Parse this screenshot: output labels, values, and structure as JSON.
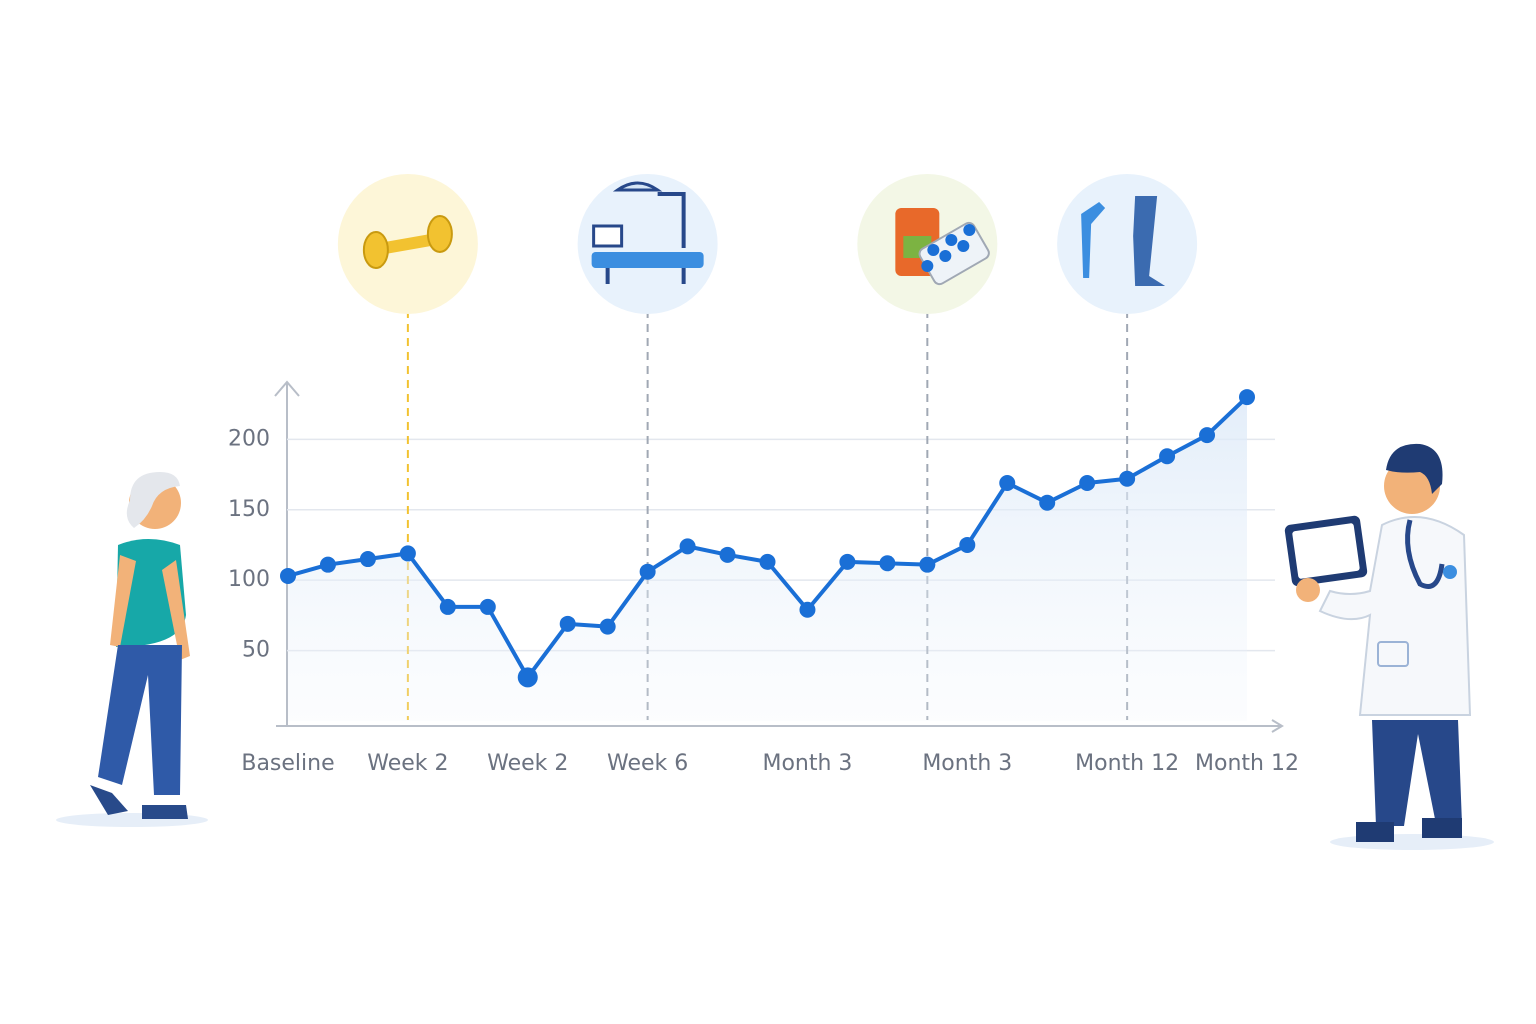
{
  "chart_data": {
    "type": "line",
    "categories": [
      "Baseline",
      null,
      null,
      "Week 2",
      null,
      null,
      "Week 2",
      null,
      null,
      "Week 6",
      null,
      null,
      null,
      "Month 3",
      null,
      null,
      null,
      "Month 3",
      null,
      null,
      null,
      "Month 12",
      null,
      null,
      "Month 12"
    ],
    "series": [
      {
        "color": "#1a6fd6",
        "values": [
          103,
          111,
          115,
          119,
          81,
          81,
          31,
          69,
          67,
          106,
          124,
          118,
          113,
          79,
          113,
          112,
          111,
          125,
          169,
          155,
          169,
          172,
          188,
          203,
          230
        ]
      }
    ],
    "ylim": [
      0,
      240
    ],
    "yticks": [
      50,
      100,
      150,
      200
    ],
    "grid": true
  }
}
